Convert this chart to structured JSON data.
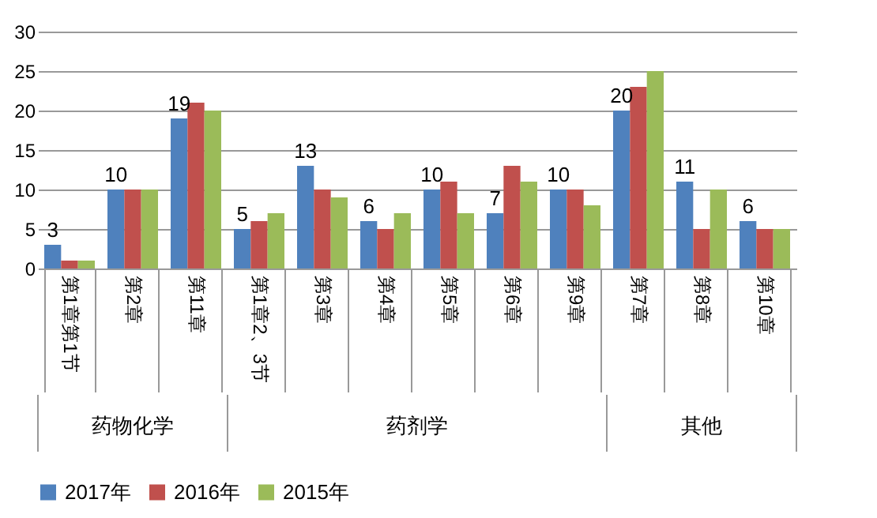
{
  "chart_data": {
    "type": "bar",
    "categories": [
      "第1章第1节",
      "第2章",
      "第11章",
      "第1章2、3节",
      "第3章",
      "第4章",
      "第5章",
      "第6章",
      "第9章",
      "第7章",
      "第8章",
      "第10章"
    ],
    "series": [
      {
        "name": "2017年",
        "color": "#4f81bd",
        "values": [
          3,
          10,
          19,
          5,
          13,
          6,
          10,
          7,
          10,
          20,
          11,
          6
        ],
        "value_labels": [
          "3",
          "10",
          "19",
          "5",
          "13",
          "6",
          "10",
          "7",
          "10",
          "20",
          "11",
          "6"
        ]
      },
      {
        "name": "2016年",
        "color": "#c0504d",
        "values": [
          1,
          10,
          21,
          6,
          10,
          5,
          11,
          13,
          10,
          23,
          5,
          5
        ]
      },
      {
        "name": "2015年",
        "color": "#9bbb59",
        "values": [
          1,
          10,
          20,
          7,
          9,
          7,
          7,
          11,
          8,
          25,
          10,
          5
        ]
      }
    ],
    "annotations": [
      "药物化学",
      "药剂学",
      "其他"
    ],
    "ylim": [
      0,
      30
    ],
    "yticks": [
      0,
      5,
      10,
      15,
      20,
      25,
      30
    ],
    "grid": "y",
    "legend": "bottom"
  }
}
